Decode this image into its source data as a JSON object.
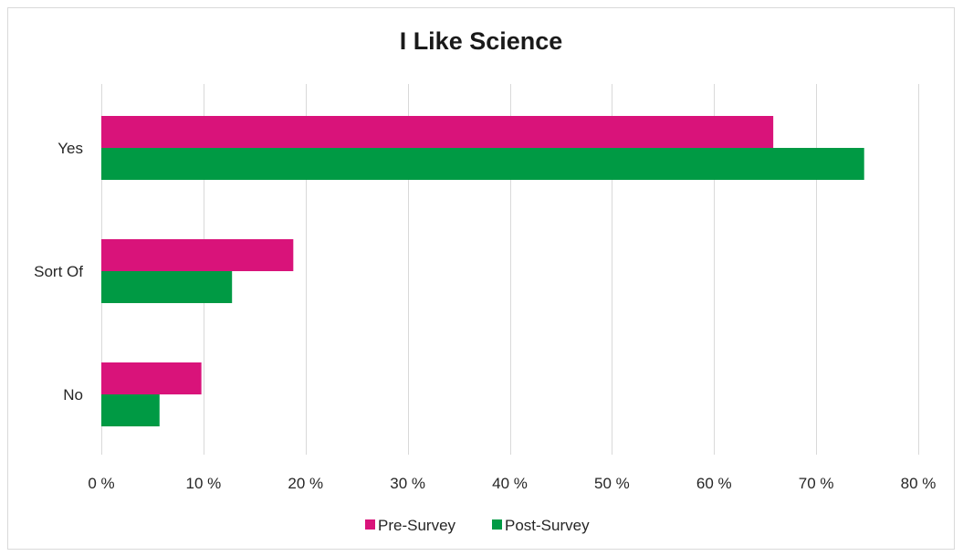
{
  "chart_data": {
    "type": "bar",
    "orientation": "horizontal",
    "title": "I Like Science",
    "categories": [
      "Yes",
      "Sort Of",
      "No"
    ],
    "series": [
      {
        "name": "Pre-Survey",
        "color": "#d9137a",
        "values": [
          65.8,
          18.8,
          9.8
        ]
      },
      {
        "name": "Post-Survey",
        "color": "#009a44",
        "values": [
          74.7,
          12.8,
          5.7
        ]
      }
    ],
    "xlim": [
      0,
      80
    ],
    "x_ticks": [
      0,
      10,
      20,
      30,
      40,
      50,
      60,
      70,
      80
    ],
    "x_tick_labels": [
      "0 %",
      "10 %",
      "20 %",
      "30 %",
      "40 %",
      "50 %",
      "60 %",
      "70 %",
      "80 %"
    ],
    "grid": "vertical",
    "legend_position": "bottom"
  }
}
